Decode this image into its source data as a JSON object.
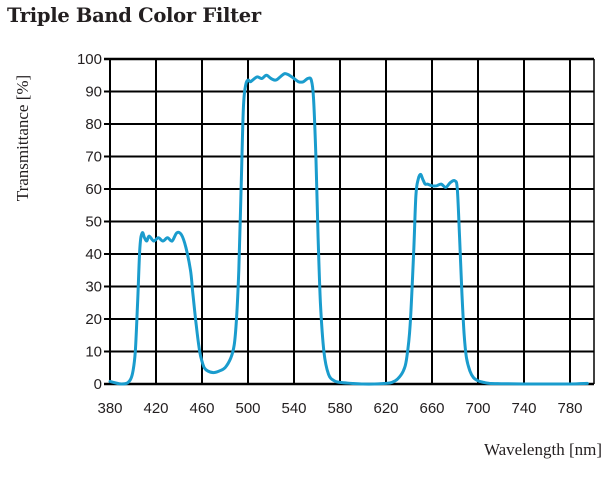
{
  "chart_data": {
    "type": "line",
    "title": "Triple Band Color Filter",
    "xlabel": "Wavelength [nm]",
    "ylabel": "Transmittance [%]",
    "xlim": [
      380,
      800
    ],
    "ylim": [
      0,
      100
    ],
    "x_ticks": [
      380,
      420,
      460,
      500,
      540,
      580,
      620,
      660,
      700,
      740,
      780
    ],
    "y_ticks": [
      0,
      10,
      20,
      30,
      40,
      50,
      60,
      70,
      80,
      90,
      100
    ],
    "grid": true,
    "legend": null,
    "line_color": "#1a9ccd",
    "series": [
      {
        "name": "Transmittance",
        "x": [
          380,
          385,
          390,
          395,
          398,
          400,
          402,
          404,
          406,
          408,
          410,
          412,
          414,
          418,
          422,
          426,
          430,
          434,
          438,
          442,
          446,
          450,
          452,
          455,
          458,
          460,
          462,
          465,
          470,
          475,
          480,
          485,
          488,
          490,
          492,
          494,
          496,
          498,
          500,
          502,
          504,
          508,
          512,
          516,
          520,
          524,
          528,
          532,
          536,
          540,
          544,
          548,
          552,
          555,
          557,
          559,
          561,
          563,
          566,
          570,
          575,
          580,
          590,
          600,
          610,
          620,
          625,
          630,
          635,
          638,
          641,
          644,
          646,
          648,
          650,
          652,
          654,
          656,
          660,
          664,
          668,
          672,
          676,
          680,
          682,
          684,
          686,
          688,
          690,
          693,
          696,
          700,
          705,
          710,
          720,
          740,
          760,
          780,
          795
        ],
        "y": [
          0.8,
          0.3,
          0,
          0.3,
          1.5,
          4,
          10,
          25,
          42,
          46.5,
          45,
          44,
          45.5,
          44,
          45,
          44,
          45,
          44,
          46.5,
          46,
          42,
          35,
          28,
          18,
          10,
          7,
          5,
          4,
          3.5,
          4,
          5,
          8,
          12,
          20,
          35,
          60,
          85,
          92,
          93.5,
          93,
          93.5,
          94.5,
          94,
          95,
          94,
          93.5,
          94.5,
          95.5,
          95,
          94,
          93,
          93,
          94,
          93.5,
          88,
          70,
          45,
          25,
          10,
          3,
          1,
          0.5,
          0.2,
          0,
          0,
          0.2,
          0.5,
          1.5,
          4,
          8,
          18,
          40,
          58,
          63,
          64.5,
          63,
          61.5,
          61.5,
          61,
          61,
          61.5,
          60.5,
          62,
          62.5,
          60,
          45,
          28,
          15,
          8,
          4,
          2,
          1,
          0.5,
          0.2,
          0.1,
          0,
          0,
          0,
          0.2
        ]
      }
    ]
  }
}
